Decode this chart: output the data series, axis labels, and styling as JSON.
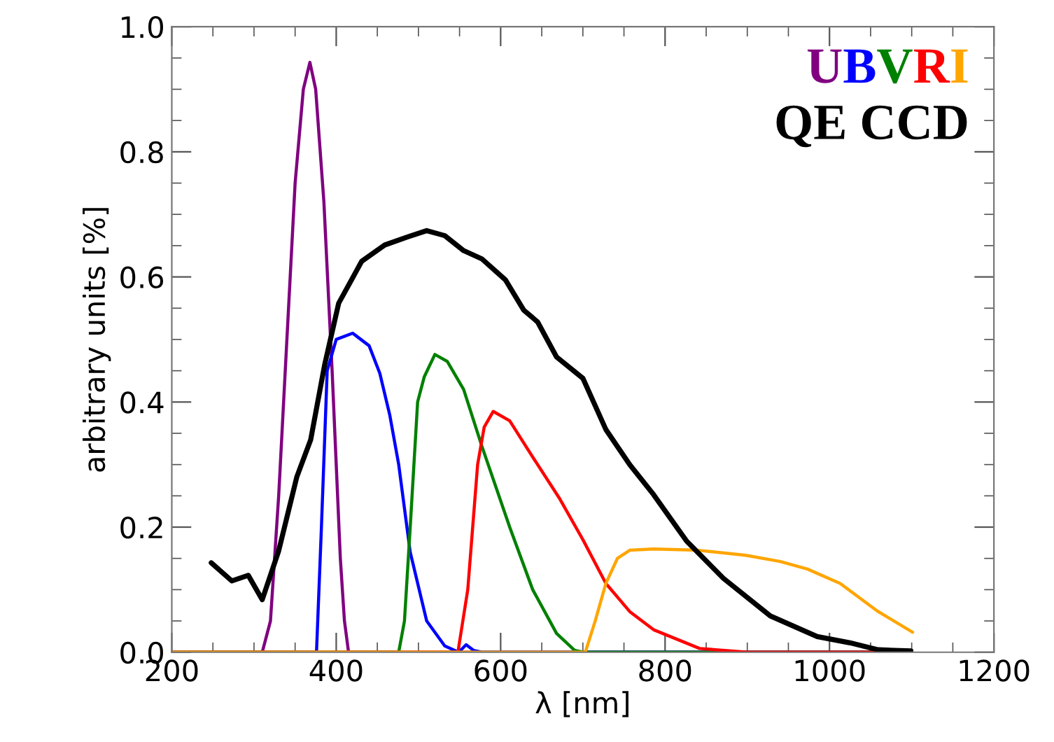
{
  "chart_data": {
    "type": "line",
    "xlabel": "λ [nm]",
    "ylabel": "arbitrary units [%]",
    "xlim": [
      200,
      1200
    ],
    "xticks": [
      200,
      400,
      600,
      800,
      1000,
      1200
    ],
    "ylim": [
      0,
      1.0
    ],
    "yticks": [
      {
        "value": 0,
        "label": "0.0"
      },
      {
        "value": 0.2,
        "label": "0.2"
      },
      {
        "value": 0.4,
        "label": "0.4"
      },
      {
        "value": 0.6,
        "label": "0.6"
      },
      {
        "value": 0.8,
        "label": "0.8"
      },
      {
        "value": 1.0,
        "label": "1.0"
      }
    ],
    "grid": false,
    "legend": "top right",
    "marker": "none",
    "line_style": "solid",
    "series": [
      {
        "name": "U",
        "color": "#800080",
        "x": [
          200,
          310,
          320,
          330,
          340,
          350,
          360,
          368,
          375,
          385,
          395,
          400,
          405,
          410,
          415,
          1100
        ],
        "values": [
          0,
          0,
          0.05,
          0.25,
          0.5,
          0.75,
          0.9,
          0.943,
          0.9,
          0.72,
          0.45,
          0.3,
          0.15,
          0.05,
          0,
          0
        ]
      },
      {
        "name": "B",
        "color": "#0000ff",
        "x": [
          200,
          376,
          382,
          389,
          400,
          420,
          440,
          453,
          465,
          476,
          490,
          510,
          532,
          549,
          558,
          567,
          577,
          1100
        ],
        "values": [
          0,
          0,
          0.2,
          0.45,
          0.5,
          0.51,
          0.49,
          0.446,
          0.38,
          0.3,
          0.16,
          0.05,
          0.01,
          0,
          0.012,
          0.003,
          0,
          0
        ]
      },
      {
        "name": "V",
        "color": "#008000",
        "x": [
          200,
          476,
          483,
          490,
          499,
          507,
          520,
          535,
          555,
          577,
          611,
          639,
          668,
          690,
          701,
          1100
        ],
        "values": [
          0,
          0,
          0.05,
          0.2,
          0.4,
          0.44,
          0.476,
          0.465,
          0.42,
          0.33,
          0.2,
          0.1,
          0.03,
          0.003,
          0,
          0
        ]
      },
      {
        "name": "R",
        "color": "#ff0000",
        "x": [
          200,
          548,
          560,
          572,
          580,
          591,
          611,
          640,
          672,
          700,
          728,
          757,
          786,
          842,
          900,
          1100
        ],
        "values": [
          0,
          0,
          0.1,
          0.3,
          0.36,
          0.385,
          0.37,
          0.31,
          0.245,
          0.18,
          0.11,
          0.065,
          0.036,
          0.006,
          0,
          0
        ]
      },
      {
        "name": "I",
        "color": "#ffa500",
        "x": [
          200,
          703,
          715,
          728,
          742,
          757,
          786,
          840,
          898,
          940,
          973,
          1013,
          1058,
          1101
        ],
        "values": [
          0,
          0,
          0.05,
          0.11,
          0.15,
          0.163,
          0.165,
          0.163,
          0.155,
          0.145,
          0.133,
          0.11,
          0.066,
          0.032
        ]
      },
      {
        "name": "QE CCD",
        "color": "#000000",
        "x": [
          248,
          273,
          293,
          310,
          330,
          352,
          369,
          386,
          403,
          431,
          459,
          487,
          510,
          532,
          555,
          577,
          606,
          628,
          645,
          668,
          700,
          728,
          757,
          786,
          826,
          871,
          928,
          985,
          1025,
          1059,
          1099
        ],
        "values": [
          0.143,
          0.114,
          0.123,
          0.084,
          0.162,
          0.28,
          0.34,
          0.46,
          0.558,
          0.625,
          0.651,
          0.664,
          0.674,
          0.666,
          0.642,
          0.629,
          0.595,
          0.547,
          0.528,
          0.472,
          0.438,
          0.356,
          0.3,
          0.252,
          0.178,
          0.118,
          0.058,
          0.025,
          0.015,
          0.004,
          0.002
        ]
      }
    ]
  }
}
